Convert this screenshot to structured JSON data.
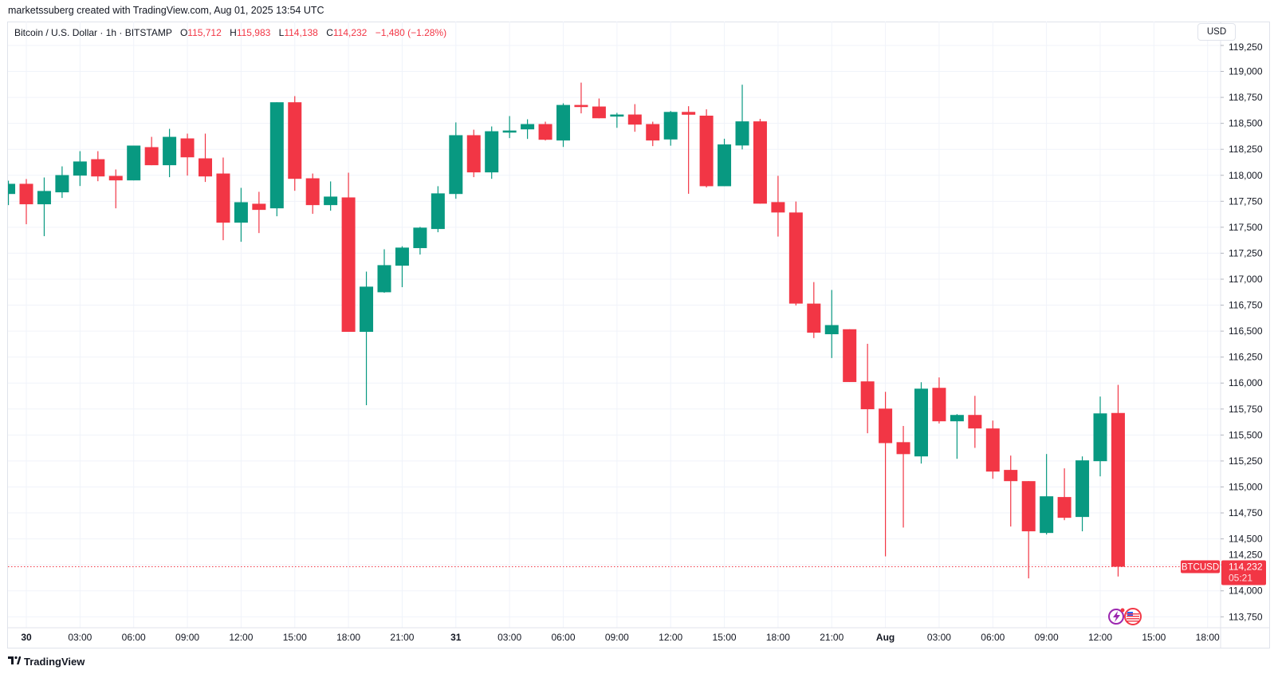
{
  "credit": "marketssuberg created with TradingView.com, Aug 01, 2025 13:54 UTC",
  "legend": {
    "symbol": "Bitcoin / U.S. Dollar · 1h · BITSTAMP",
    "o_label": "O",
    "o": "115,712",
    "h_label": "H",
    "h": "115,983",
    "l_label": "L",
    "l": "114,138",
    "c_label": "C",
    "c": "114,232",
    "change": "−1,480 (−1.28%)"
  },
  "currency_button": "USD",
  "price_tag": {
    "symbol": "BTCUSD",
    "price": "114,232",
    "countdown": "05:21"
  },
  "footer": {
    "logo_text": "TradingView"
  },
  "icons": [
    "tv-logo-icon",
    "lightning-icon",
    "us-flag-icon"
  ],
  "colors": {
    "up": "#089981",
    "down": "#f23645",
    "grid": "#f0f3fa",
    "text": "#131722"
  },
  "chart_data": {
    "type": "candlestick",
    "title": "",
    "symbol": "BTCUSD",
    "interval": "1h",
    "ylim": [
      113660,
      119480
    ],
    "grid": true,
    "y_ticks": [
      "113,750",
      "114,000",
      "114,250",
      "114,500",
      "114,750",
      "115,000",
      "115,250",
      "115,500",
      "115,750",
      "116,000",
      "116,250",
      "116,500",
      "116,750",
      "117,000",
      "117,250",
      "117,500",
      "117,750",
      "118,000",
      "118,250",
      "118,500",
      "118,750",
      "119,000",
      "119,250"
    ],
    "x_ticks": [
      "30",
      "03:00",
      "06:00",
      "09:00",
      "12:00",
      "15:00",
      "18:00",
      "21:00",
      "31",
      "03:00",
      "06:00",
      "09:00",
      "12:00",
      "15:00",
      "18:00",
      "21:00",
      "Aug",
      "03:00",
      "06:00",
      "09:00",
      "12:00",
      "15:00",
      "18:00"
    ],
    "last_price": 114232,
    "ohlc": [
      {
        "t": "2025-07-29 23:00",
        "o": 117820,
        "h": 117948,
        "l": 117713,
        "c": 117918
      },
      {
        "t": "2025-07-30 00:00",
        "o": 117918,
        "h": 117964,
        "l": 117529,
        "c": 117721
      },
      {
        "t": "2025-07-30 01:00",
        "o": 117721,
        "h": 117979,
        "l": 117414,
        "c": 117849
      },
      {
        "t": "2025-07-30 02:00",
        "o": 117836,
        "h": 118086,
        "l": 117782,
        "c": 118002
      },
      {
        "t": "2025-07-30 03:00",
        "o": 117997,
        "h": 118232,
        "l": 117897,
        "c": 118133
      },
      {
        "t": "2025-07-30 04:00",
        "o": 118155,
        "h": 118232,
        "l": 117943,
        "c": 117989
      },
      {
        "t": "2025-07-30 05:00",
        "o": 117994,
        "h": 118056,
        "l": 117682,
        "c": 117951
      },
      {
        "t": "2025-07-30 06:00",
        "o": 117951,
        "h": 118286,
        "l": 117951,
        "c": 118286
      },
      {
        "t": "2025-07-30 07:00",
        "o": 118271,
        "h": 118370,
        "l": 118097,
        "c": 118097
      },
      {
        "t": "2025-07-30 08:00",
        "o": 118097,
        "h": 118447,
        "l": 117982,
        "c": 118370
      },
      {
        "t": "2025-07-30 09:00",
        "o": 118355,
        "h": 118401,
        "l": 117997,
        "c": 118173
      },
      {
        "t": "2025-07-30 10:00",
        "o": 118163,
        "h": 118401,
        "l": 117936,
        "c": 117989
      },
      {
        "t": "2025-07-30 11:00",
        "o": 118017,
        "h": 118171,
        "l": 117375,
        "c": 117544
      },
      {
        "t": "2025-07-30 12:00",
        "o": 117544,
        "h": 117879,
        "l": 117360,
        "c": 117741
      },
      {
        "t": "2025-07-30 13:00",
        "o": 117726,
        "h": 117841,
        "l": 117444,
        "c": 117667
      },
      {
        "t": "2025-07-30 14:00",
        "o": 117682,
        "h": 118703,
        "l": 117606,
        "c": 118703
      },
      {
        "t": "2025-07-30 15:00",
        "o": 118703,
        "h": 118762,
        "l": 117851,
        "c": 117966
      },
      {
        "t": "2025-07-30 16:00",
        "o": 117971,
        "h": 118017,
        "l": 117629,
        "c": 117713
      },
      {
        "t": "2025-07-30 17:00",
        "o": 117713,
        "h": 117941,
        "l": 117659,
        "c": 117795
      },
      {
        "t": "2025-07-30 18:00",
        "o": 117787,
        "h": 118025,
        "l": 116493,
        "c": 116493
      },
      {
        "t": "2025-07-30 19:00",
        "o": 116493,
        "h": 117073,
        "l": 115787,
        "c": 116928
      },
      {
        "t": "2025-07-30 20:00",
        "o": 116874,
        "h": 117288,
        "l": 116869,
        "c": 117135
      },
      {
        "t": "2025-07-30 21:00",
        "o": 117130,
        "h": 117317,
        "l": 116923,
        "c": 117304
      },
      {
        "t": "2025-07-30 22:00",
        "o": 117299,
        "h": 117503,
        "l": 117237,
        "c": 117496
      },
      {
        "t": "2025-07-30 23:00",
        "o": 117483,
        "h": 117895,
        "l": 117452,
        "c": 117826
      },
      {
        "t": "2025-07-31 00:00",
        "o": 117820,
        "h": 118509,
        "l": 117774,
        "c": 118386
      },
      {
        "t": "2025-07-31 01:00",
        "o": 118386,
        "h": 118439,
        "l": 117982,
        "c": 118028
      },
      {
        "t": "2025-07-31 02:00",
        "o": 118028,
        "h": 118470,
        "l": 117966,
        "c": 118424
      },
      {
        "t": "2025-07-31 03:00",
        "o": 118411,
        "h": 118570,
        "l": 118358,
        "c": 118431
      },
      {
        "t": "2025-07-31 04:00",
        "o": 118442,
        "h": 118539,
        "l": 118350,
        "c": 118493
      },
      {
        "t": "2025-07-31 05:00",
        "o": 118493,
        "h": 118516,
        "l": 118335,
        "c": 118342
      },
      {
        "t": "2025-07-31 06:00",
        "o": 118335,
        "h": 118693,
        "l": 118273,
        "c": 118677
      },
      {
        "t": "2025-07-31 07:00",
        "o": 118677,
        "h": 118892,
        "l": 118596,
        "c": 118657
      },
      {
        "t": "2025-07-31 08:00",
        "o": 118662,
        "h": 118739,
        "l": 118549,
        "c": 118549
      },
      {
        "t": "2025-07-31 09:00",
        "o": 118565,
        "h": 118601,
        "l": 118457,
        "c": 118585
      },
      {
        "t": "2025-07-31 10:00",
        "o": 118585,
        "h": 118685,
        "l": 118419,
        "c": 118488
      },
      {
        "t": "2025-07-31 11:00",
        "o": 118493,
        "h": 118516,
        "l": 118281,
        "c": 118335
      },
      {
        "t": "2025-07-31 12:00",
        "o": 118345,
        "h": 118619,
        "l": 118285,
        "c": 118610
      },
      {
        "t": "2025-07-31 13:00",
        "o": 118610,
        "h": 118665,
        "l": 117822,
        "c": 118583
      },
      {
        "t": "2025-07-31 14:00",
        "o": 118574,
        "h": 118635,
        "l": 117883,
        "c": 117895
      },
      {
        "t": "2025-07-31 15:00",
        "o": 117895,
        "h": 118352,
        "l": 117895,
        "c": 118297
      },
      {
        "t": "2025-07-31 16:00",
        "o": 118287,
        "h": 118872,
        "l": 118249,
        "c": 118519
      },
      {
        "t": "2025-07-31 17:00",
        "o": 118519,
        "h": 118543,
        "l": 117727,
        "c": 117727
      },
      {
        "t": "2025-07-31 18:00",
        "o": 117742,
        "h": 117995,
        "l": 117410,
        "c": 117642
      },
      {
        "t": "2025-07-31 19:00",
        "o": 117642,
        "h": 117748,
        "l": 116747,
        "c": 116765
      },
      {
        "t": "2025-07-31 20:00",
        "o": 116765,
        "h": 116972,
        "l": 116433,
        "c": 116485
      },
      {
        "t": "2025-07-31 21:00",
        "o": 116470,
        "h": 116896,
        "l": 116241,
        "c": 116558
      },
      {
        "t": "2025-07-31 22:00",
        "o": 116518,
        "h": 116518,
        "l": 116010,
        "c": 116010
      },
      {
        "t": "2025-07-31 23:00",
        "o": 116016,
        "h": 116378,
        "l": 115517,
        "c": 115748
      },
      {
        "t": "2025-08-01 00:00",
        "o": 115754,
        "h": 115915,
        "l": 114332,
        "c": 115422
      },
      {
        "t": "2025-08-01 01:00",
        "o": 115431,
        "h": 115587,
        "l": 114609,
        "c": 115316
      },
      {
        "t": "2025-08-01 02:00",
        "o": 115294,
        "h": 116008,
        "l": 115225,
        "c": 115946
      },
      {
        "t": "2025-08-01 03:00",
        "o": 115954,
        "h": 116054,
        "l": 115611,
        "c": 115632
      },
      {
        "t": "2025-08-01 04:00",
        "o": 115632,
        "h": 115701,
        "l": 115271,
        "c": 115693
      },
      {
        "t": "2025-08-01 05:00",
        "o": 115693,
        "h": 115877,
        "l": 115376,
        "c": 115563
      },
      {
        "t": "2025-08-01 06:00",
        "o": 115563,
        "h": 115639,
        "l": 115079,
        "c": 115148
      },
      {
        "t": "2025-08-01 07:00",
        "o": 115164,
        "h": 115302,
        "l": 114619,
        "c": 115056
      },
      {
        "t": "2025-08-01 08:00",
        "o": 115056,
        "h": 115056,
        "l": 114120,
        "c": 114573
      },
      {
        "t": "2025-08-01 09:00",
        "o": 114557,
        "h": 115317,
        "l": 114542,
        "c": 114910
      },
      {
        "t": "2025-08-01 10:00",
        "o": 114903,
        "h": 115179,
        "l": 114680,
        "c": 114703
      },
      {
        "t": "2025-08-01 11:00",
        "o": 114711,
        "h": 115294,
        "l": 114573,
        "c": 115256
      },
      {
        "t": "2025-08-01 12:00",
        "o": 115248,
        "h": 115870,
        "l": 115102,
        "c": 115708
      },
      {
        "t": "2025-08-01 13:00",
        "o": 115712,
        "h": 115983,
        "l": 114138,
        "c": 114232
      }
    ]
  }
}
